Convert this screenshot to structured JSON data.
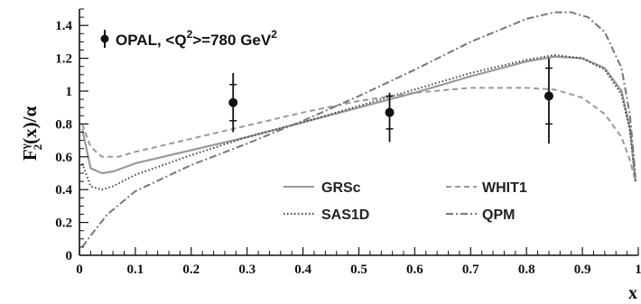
{
  "chart_data": {
    "type": "line",
    "ylabel_parts": {
      "F": "F",
      "sup": "γ",
      "sub": "2",
      "rest": "(x)/α"
    },
    "xlabel": "x",
    "xlim": [
      0,
      1
    ],
    "ylim": [
      0,
      1.5
    ],
    "x_ticks": [
      0,
      0.1,
      0.2,
      0.3,
      0.4,
      0.5,
      0.6,
      0.7,
      0.8,
      0.9,
      1
    ],
    "x_tick_labels": [
      "0",
      "0.1",
      "0.2",
      "0.3",
      "0.4",
      "0.5",
      "0.6",
      "0.7",
      "0.8",
      "0.9",
      "1"
    ],
    "y_ticks": [
      0,
      0.2,
      0.4,
      0.6,
      0.8,
      1.0,
      1.2,
      1.4
    ],
    "y_tick_labels": [
      "0",
      "0.2",
      "0.4",
      "0.6",
      "0.8",
      "1",
      "1.2",
      "1.4"
    ],
    "data_series": {
      "name_parts": {
        "pre": "OPAL, <Q",
        "sup": "2",
        "post": ">=780 GeV",
        "sup2": "2"
      },
      "points": [
        {
          "x": 0.275,
          "y": 0.93,
          "stat_err": [
            0.82,
            1.04
          ],
          "tot_err": [
            0.75,
            1.11
          ]
        },
        {
          "x": 0.555,
          "y": 0.87,
          "stat_err": [
            0.77,
            0.97
          ],
          "tot_err": [
            0.69,
            0.99
          ]
        },
        {
          "x": 0.84,
          "y": 0.97,
          "stat_err": [
            0.8,
            1.14
          ],
          "tot_err": [
            0.68,
            1.2
          ]
        }
      ]
    },
    "series": [
      {
        "name": "GRSc",
        "style": "solid",
        "x": [
          0.005,
          0.02,
          0.04,
          0.06,
          0.1,
          0.2,
          0.3,
          0.4,
          0.5,
          0.6,
          0.7,
          0.8,
          0.85,
          0.9,
          0.94,
          0.97,
          0.985,
          0.995
        ],
        "y": [
          0.77,
          0.53,
          0.5,
          0.51,
          0.56,
          0.64,
          0.72,
          0.81,
          0.9,
          0.99,
          1.09,
          1.18,
          1.21,
          1.2,
          1.14,
          1.0,
          0.78,
          0.45
        ]
      },
      {
        "name": "SAS1D",
        "style": "dotted",
        "x": [
          0.005,
          0.02,
          0.04,
          0.06,
          0.1,
          0.2,
          0.3,
          0.4,
          0.5,
          0.6,
          0.7,
          0.8,
          0.85,
          0.9,
          0.94,
          0.97,
          0.985,
          0.995
        ],
        "y": [
          0.56,
          0.42,
          0.4,
          0.42,
          0.49,
          0.61,
          0.72,
          0.81,
          0.91,
          1.01,
          1.11,
          1.19,
          1.22,
          1.2,
          1.13,
          0.98,
          0.76,
          0.45
        ]
      },
      {
        "name": "WHIT1",
        "style": "dashed",
        "x": [
          0.005,
          0.02,
          0.04,
          0.07,
          0.1,
          0.2,
          0.3,
          0.4,
          0.5,
          0.6,
          0.7,
          0.8,
          0.85,
          0.9,
          0.94,
          0.97,
          0.985,
          0.995
        ],
        "y": [
          0.8,
          0.66,
          0.6,
          0.6,
          0.63,
          0.71,
          0.79,
          0.87,
          0.94,
          0.99,
          1.02,
          1.02,
          1.01,
          0.96,
          0.86,
          0.72,
          0.58,
          0.45
        ]
      },
      {
        "name": "QPM",
        "style": "dashdot",
        "x": [
          0.005,
          0.02,
          0.05,
          0.1,
          0.2,
          0.3,
          0.4,
          0.5,
          0.6,
          0.7,
          0.8,
          0.85,
          0.88,
          0.91,
          0.94,
          0.97,
          0.985,
          0.995
        ],
        "y": [
          0.05,
          0.12,
          0.25,
          0.39,
          0.55,
          0.68,
          0.82,
          0.97,
          1.13,
          1.3,
          1.44,
          1.48,
          1.48,
          1.45,
          1.36,
          1.14,
          0.86,
          0.48
        ]
      }
    ],
    "legend_position": "lower-right"
  }
}
